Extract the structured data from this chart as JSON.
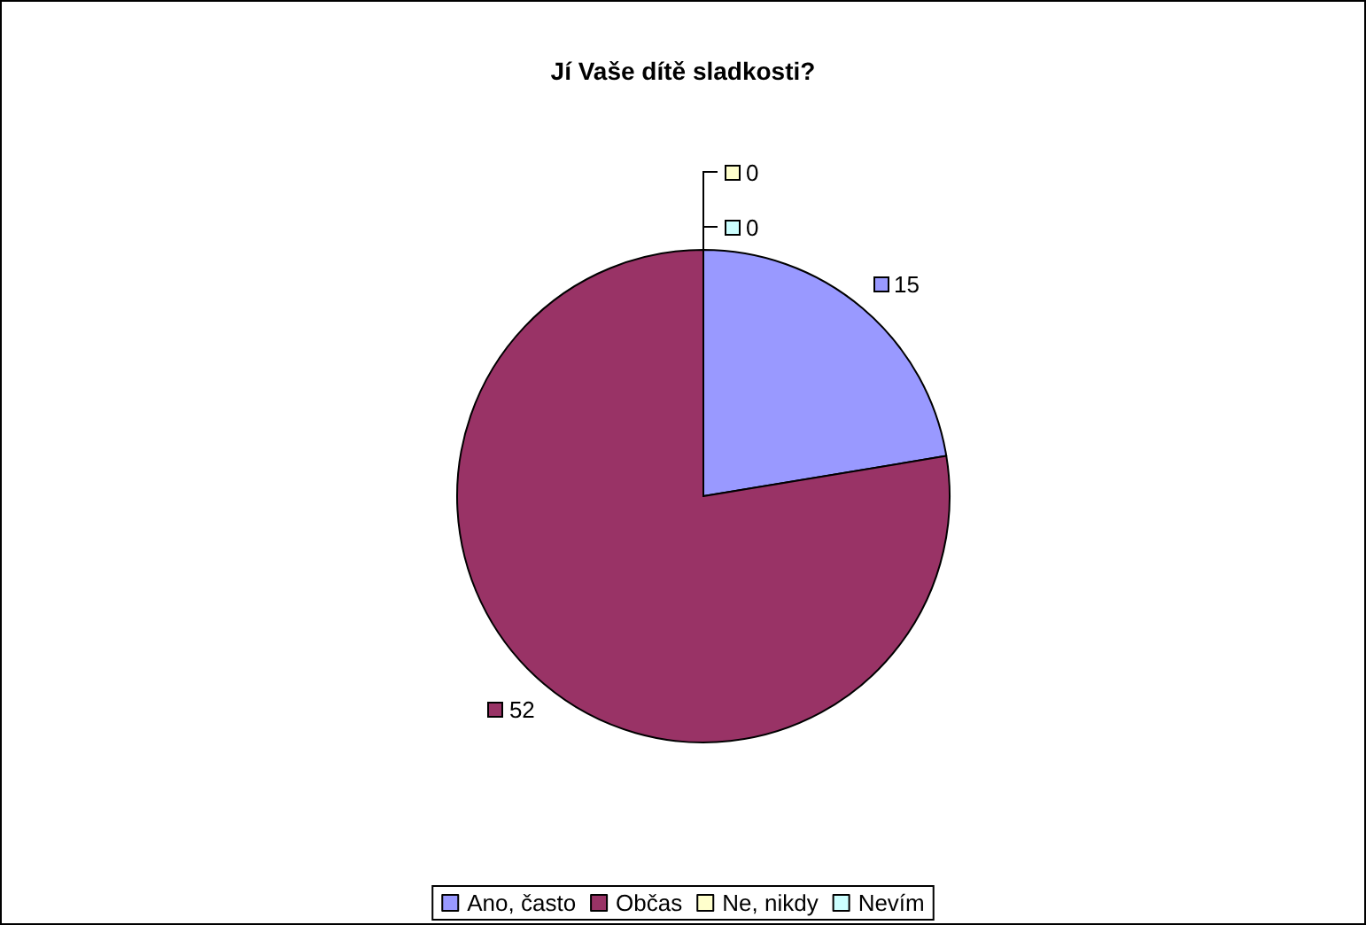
{
  "chart_data": {
    "type": "pie",
    "title": "Jí Vaše dítě sladkosti?",
    "categories": [
      "Ano, často",
      "Občas",
      "Ne, nikdy",
      "Nevím"
    ],
    "values": [
      15,
      52,
      0,
      0
    ],
    "value_labels": [
      "15",
      "52",
      "0",
      "0"
    ],
    "colors": [
      "#9999ff",
      "#993366",
      "#ffffcc",
      "#ccffff"
    ],
    "legend": "bottom"
  }
}
